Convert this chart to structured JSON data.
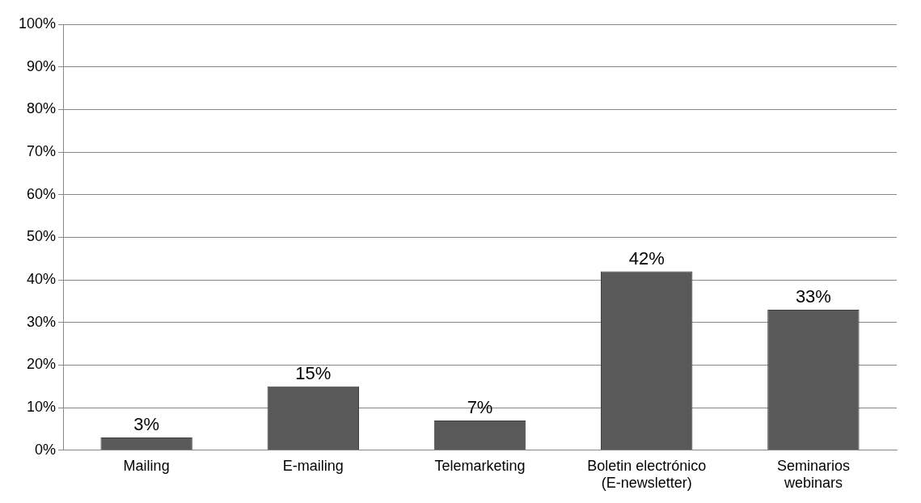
{
  "chart_data": {
    "type": "bar",
    "categories": [
      "Mailing",
      "E-mailing",
      "Telemarketing",
      "Boletin electrónico\n(E-newsletter)",
      "Seminarios\nwebinars"
    ],
    "values": [
      3,
      15,
      7,
      42,
      33
    ],
    "value_labels": [
      "3%",
      "15%",
      "7%",
      "42%",
      "33%"
    ],
    "color": "#595959",
    "ylim": [
      0,
      100
    ],
    "yticks": [
      {
        "value": 0,
        "label": "0%"
      },
      {
        "value": 10,
        "label": "10%"
      },
      {
        "value": 20,
        "label": "20%"
      },
      {
        "value": 30,
        "label": "30%"
      },
      {
        "value": 40,
        "label": "40%"
      },
      {
        "value": 50,
        "label": "50%"
      },
      {
        "value": 60,
        "label": "60%"
      },
      {
        "value": 70,
        "label": "70%"
      },
      {
        "value": 80,
        "label": "80%"
      },
      {
        "value": 90,
        "label": "90%"
      },
      {
        "value": 100,
        "label": "100%"
      }
    ],
    "grid": "y"
  }
}
